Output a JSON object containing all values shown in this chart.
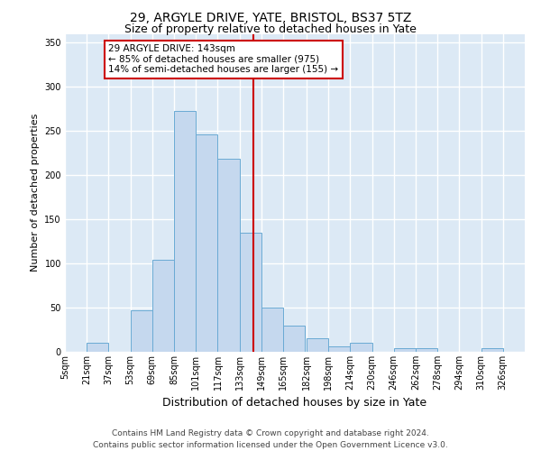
{
  "title": "29, ARGYLE DRIVE, YATE, BRISTOL, BS37 5TZ",
  "subtitle": "Size of property relative to detached houses in Yate",
  "xlabel": "Distribution of detached houses by size in Yate",
  "ylabel": "Number of detached properties",
  "footer_line1": "Contains HM Land Registry data © Crown copyright and database right 2024.",
  "footer_line2": "Contains public sector information licensed under the Open Government Licence v3.0.",
  "bin_labels": [
    "5sqm",
    "21sqm",
    "37sqm",
    "53sqm",
    "69sqm",
    "85sqm",
    "101sqm",
    "117sqm",
    "133sqm",
    "149sqm",
    "165sqm",
    "182sqm",
    "198sqm",
    "214sqm",
    "230sqm",
    "246sqm",
    "262sqm",
    "278sqm",
    "294sqm",
    "310sqm",
    "326sqm"
  ],
  "bar_values": [
    0,
    10,
    0,
    47,
    104,
    273,
    246,
    219,
    135,
    50,
    30,
    15,
    6,
    10,
    0,
    4,
    4,
    0,
    0,
    4
  ],
  "bar_color": "#c5d8ee",
  "bar_edge_color": "#6aaad4",
  "property_size": 143,
  "vline_color": "#cc0000",
  "annotation_text": "29 ARGYLE DRIVE: 143sqm\n← 85% of detached houses are smaller (975)\n14% of semi-detached houses are larger (155) →",
  "annotation_box_color": "#cc0000",
  "annotation_bg_color": "#ffffff",
  "ylim": [
    0,
    360
  ],
  "yticks": [
    0,
    50,
    100,
    150,
    200,
    250,
    300,
    350
  ],
  "background_color": "#dce9f5",
  "grid_color": "#ffffff",
  "title_fontsize": 10,
  "subtitle_fontsize": 9,
  "xlabel_fontsize": 9,
  "ylabel_fontsize": 8,
  "tick_fontsize": 7,
  "annotation_fontsize": 7.5,
  "footer_fontsize": 6.5
}
